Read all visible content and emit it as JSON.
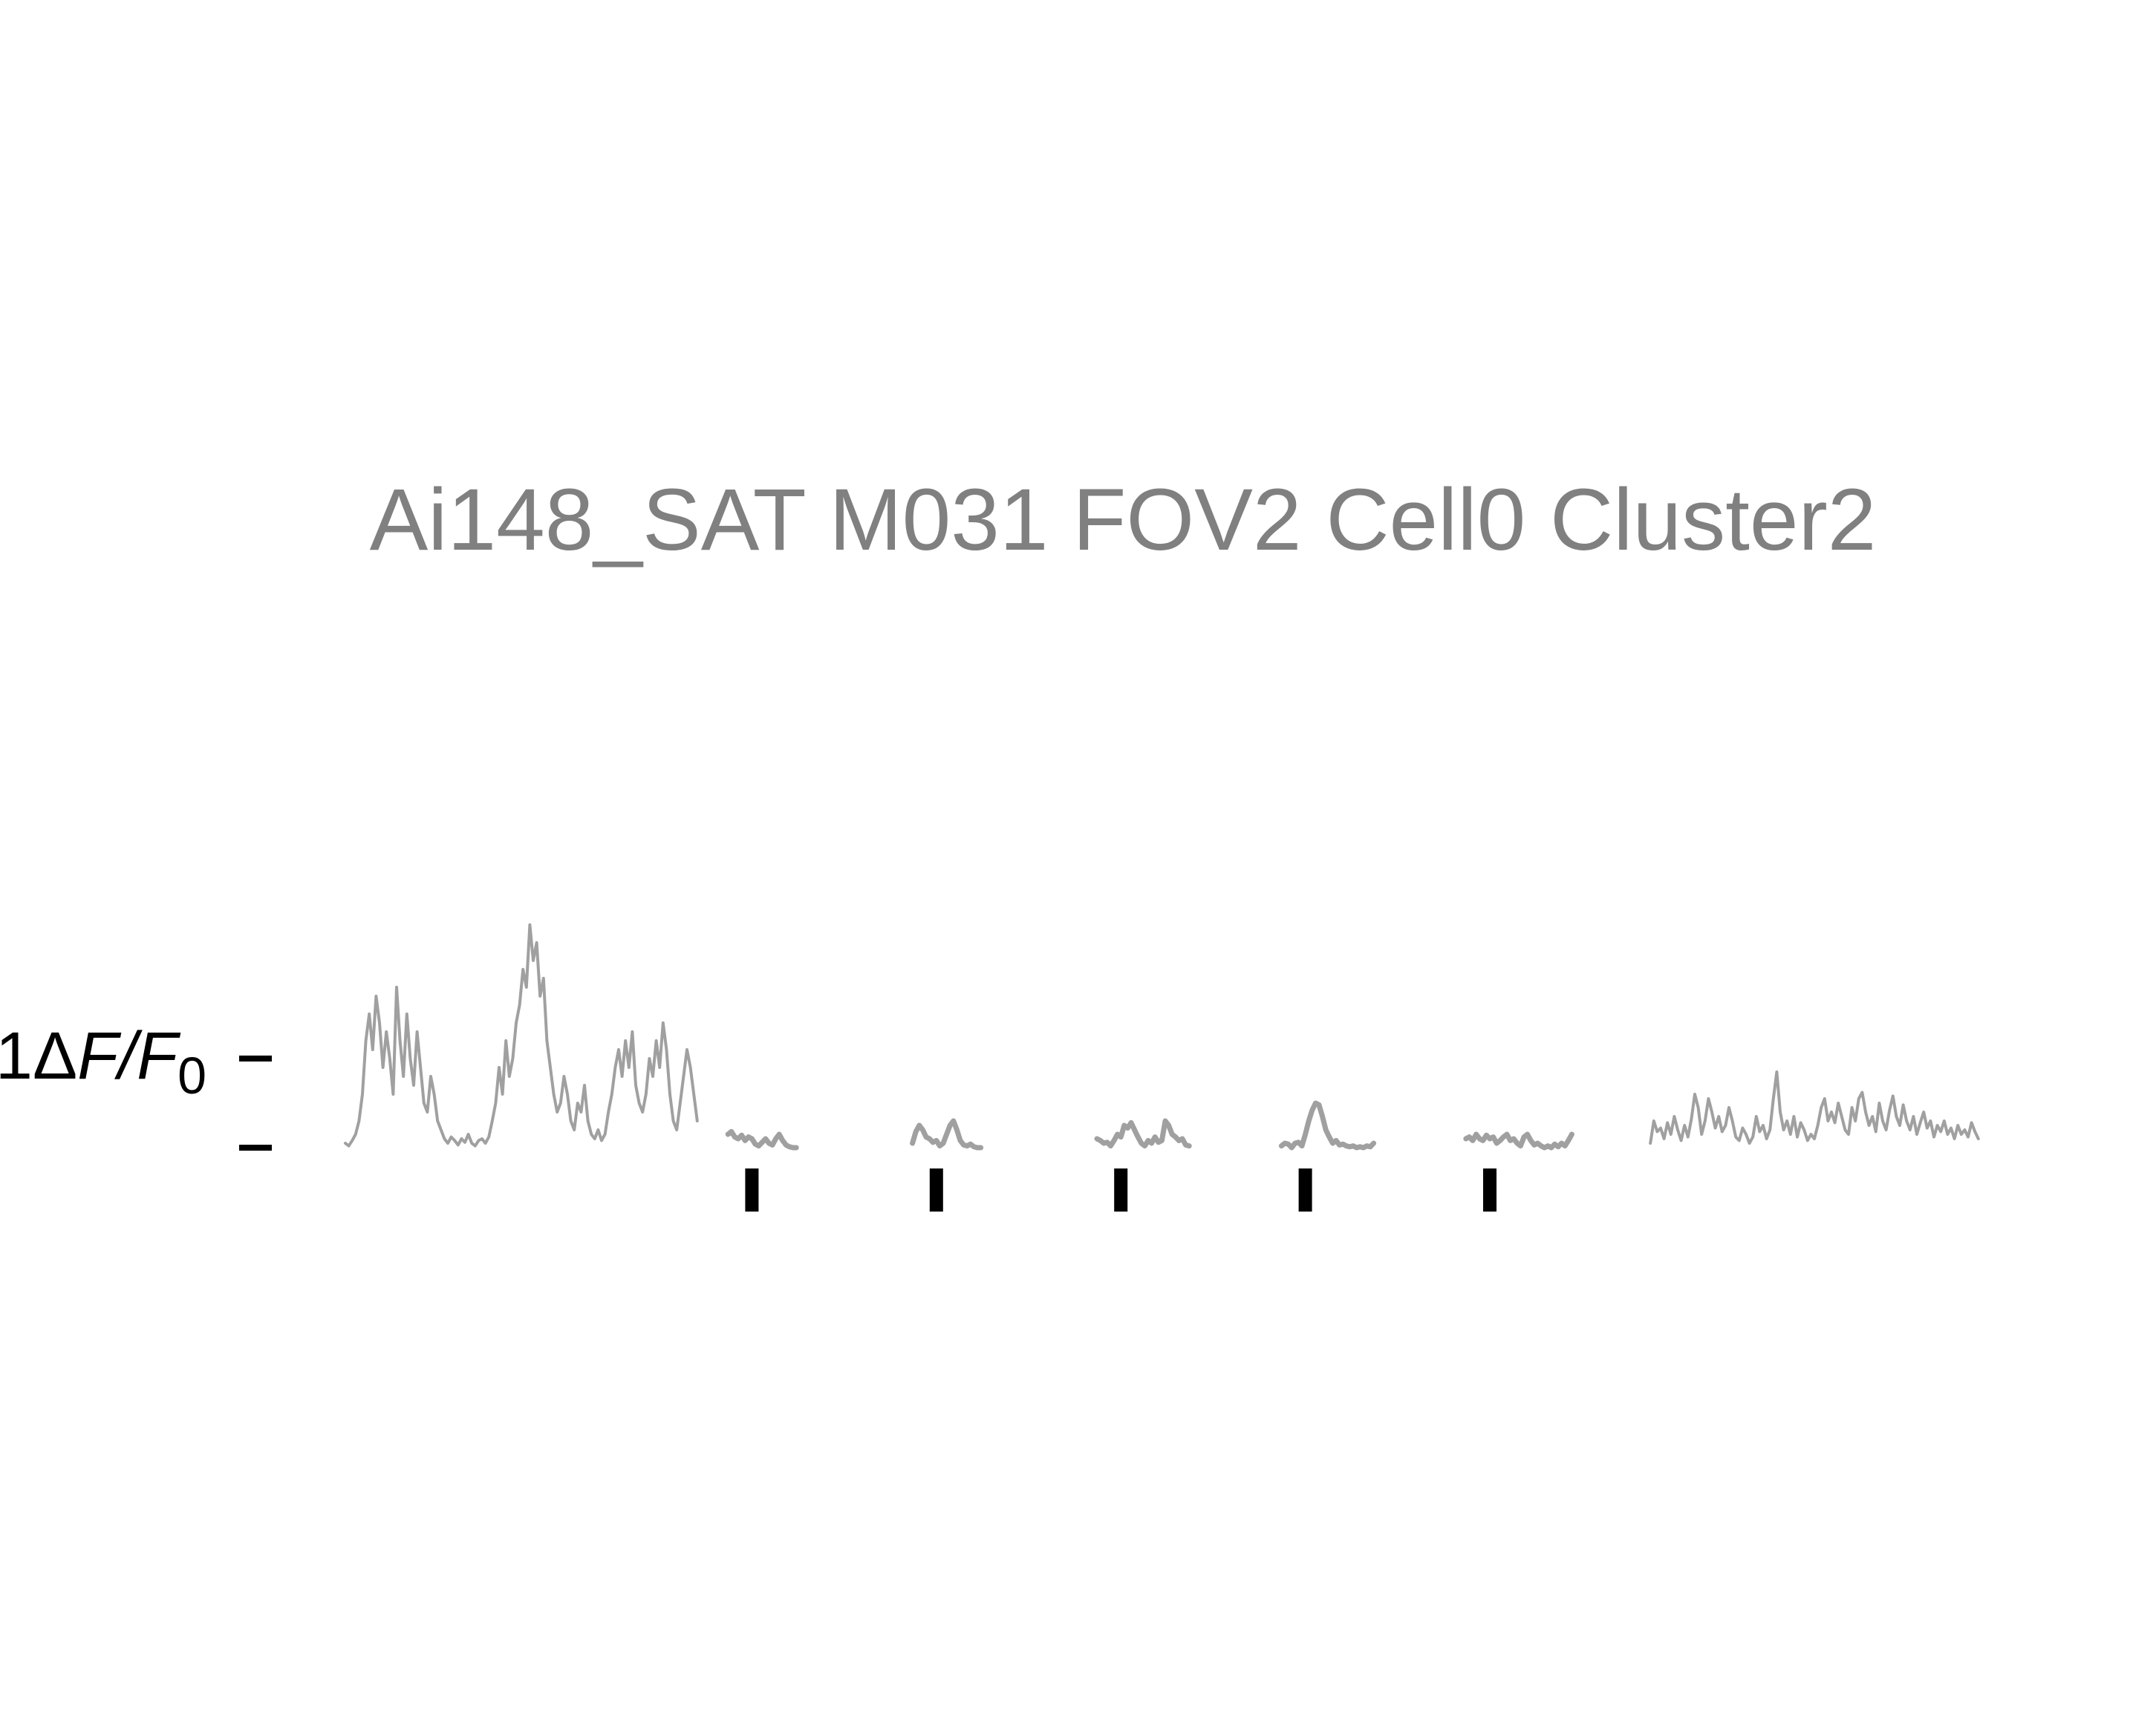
{
  "chart_data": {
    "type": "line",
    "title": "Ai148_SAT M031 FOV2 Cell0 Cluster2",
    "ylabel": "1ΔF/F0",
    "ylabel_parts": {
      "prefix": "1",
      "delta": "Δ",
      "f": "F",
      "slash": "/",
      "f0": "F",
      "sub": "0"
    },
    "ylim": [
      -0.2,
      2.6
    ],
    "yticks": [
      0,
      1
    ],
    "grid": false,
    "legend": "none",
    "colors": {
      "trace": "#a0a0a0",
      "markers": "#000000",
      "title": "#808080"
    },
    "x_unit": "frame",
    "series": [
      {
        "segment": "baseline",
        "x_start": 0,
        "x_step": 1,
        "values": [
          0.05,
          0.02,
          0.08,
          0.15,
          0.3,
          0.6,
          1.2,
          1.5,
          1.1,
          1.7,
          1.4,
          0.9,
          1.3,
          1.0,
          0.6,
          1.8,
          1.2,
          0.8,
          1.5,
          1.0,
          0.7,
          1.3,
          0.9,
          0.5,
          0.4,
          0.8,
          0.6,
          0.3,
          0.2,
          0.1,
          0.05,
          0.12,
          0.08,
          0.03,
          0.1,
          0.06,
          0.15,
          0.05,
          0.02,
          0.08,
          0.1,
          0.05,
          0.12,
          0.3,
          0.5,
          0.9,
          0.6,
          1.2,
          0.8,
          1.0,
          1.4,
          1.6,
          2.0,
          1.8,
          2.5,
          2.1,
          2.3,
          1.7,
          1.9,
          1.2,
          0.9,
          0.6,
          0.4,
          0.5,
          0.8,
          0.6,
          0.3,
          0.2,
          0.5,
          0.4,
          0.7,
          0.3,
          0.15,
          0.1,
          0.2,
          0.08,
          0.15,
          0.4,
          0.6,
          0.9,
          1.1,
          0.8,
          1.2,
          0.9,
          1.3,
          0.7,
          0.5,
          0.4,
          0.6,
          1.0,
          0.8,
          1.2,
          0.9,
          1.4,
          1.1,
          0.6,
          0.3,
          0.2,
          0.5,
          0.8,
          1.1,
          0.9,
          0.6,
          0.3
        ]
      },
      {
        "segment": "trial-1",
        "x_start": 112,
        "x_step": 1,
        "values": [
          0.15,
          0.18,
          0.12,
          0.1,
          0.14,
          0.08,
          0.12,
          0.1,
          0.04,
          0.02,
          0.06,
          0.1,
          0.05,
          0.03,
          0.1,
          0.15,
          0.08,
          0.03,
          0.01,
          0.0,
          0.0
        ]
      },
      {
        "segment": "trial-2",
        "x_start": 166,
        "x_step": 1,
        "values": [
          0.05,
          0.18,
          0.25,
          0.2,
          0.12,
          0.1,
          0.06,
          0.08,
          0.02,
          0.05,
          0.15,
          0.25,
          0.3,
          0.2,
          0.08,
          0.03,
          0.02,
          0.04,
          0.01,
          0.0,
          0.0
        ]
      },
      {
        "segment": "trial-3",
        "x_start": 220,
        "x_step": 1,
        "values": [
          0.1,
          0.08,
          0.05,
          0.06,
          0.02,
          0.08,
          0.15,
          0.12,
          0.25,
          0.22,
          0.28,
          0.2,
          0.12,
          0.05,
          0.02,
          0.08,
          0.05,
          0.12,
          0.06,
          0.08,
          0.3,
          0.25,
          0.15,
          0.12,
          0.08,
          0.1,
          0.03,
          0.02
        ]
      },
      {
        "segment": "trial-4",
        "x_start": 274,
        "x_step": 1,
        "values": [
          0.02,
          0.05,
          0.04,
          0.0,
          0.05,
          0.06,
          0.02,
          0.15,
          0.3,
          0.42,
          0.5,
          0.48,
          0.35,
          0.2,
          0.12,
          0.05,
          0.08,
          0.03,
          0.04,
          0.02,
          0.01,
          0.02,
          0.0,
          0.01,
          0.0,
          0.02,
          0.01,
          0.05
        ]
      },
      {
        "segment": "trial-5",
        "x_start": 328,
        "x_step": 1,
        "values": [
          0.1,
          0.12,
          0.08,
          0.15,
          0.1,
          0.08,
          0.14,
          0.1,
          0.12,
          0.05,
          0.08,
          0.12,
          0.15,
          0.08,
          0.1,
          0.05,
          0.02,
          0.12,
          0.15,
          0.08,
          0.03,
          0.05,
          0.02,
          0.0,
          0.02,
          0.0,
          0.04,
          0.01,
          0.05,
          0.02,
          0.08,
          0.15
        ]
      },
      {
        "segment": "recovery",
        "x_start": 382,
        "x_step": 1,
        "values": [
          0.05,
          0.3,
          0.18,
          0.22,
          0.1,
          0.28,
          0.15,
          0.35,
          0.2,
          0.08,
          0.25,
          0.12,
          0.32,
          0.6,
          0.45,
          0.15,
          0.3,
          0.55,
          0.4,
          0.22,
          0.35,
          0.18,
          0.25,
          0.45,
          0.3,
          0.12,
          0.08,
          0.22,
          0.15,
          0.05,
          0.12,
          0.35,
          0.18,
          0.25,
          0.1,
          0.2,
          0.55,
          0.85,
          0.4,
          0.2,
          0.3,
          0.15,
          0.35,
          0.12,
          0.28,
          0.2,
          0.08,
          0.15,
          0.1,
          0.25,
          0.45,
          0.55,
          0.3,
          0.4,
          0.28,
          0.5,
          0.35,
          0.2,
          0.15,
          0.45,
          0.3,
          0.55,
          0.62,
          0.4,
          0.25,
          0.35,
          0.18,
          0.5,
          0.3,
          0.2,
          0.42,
          0.58,
          0.35,
          0.25,
          0.48,
          0.3,
          0.2,
          0.35,
          0.15,
          0.28,
          0.4,
          0.22,
          0.3,
          0.12,
          0.25,
          0.18,
          0.3,
          0.15,
          0.22,
          0.1,
          0.25,
          0.15,
          0.2,
          0.12,
          0.28,
          0.18,
          0.1
        ]
      }
    ],
    "stimulus_markers_x": [
      119,
      173,
      227,
      281,
      335
    ]
  }
}
